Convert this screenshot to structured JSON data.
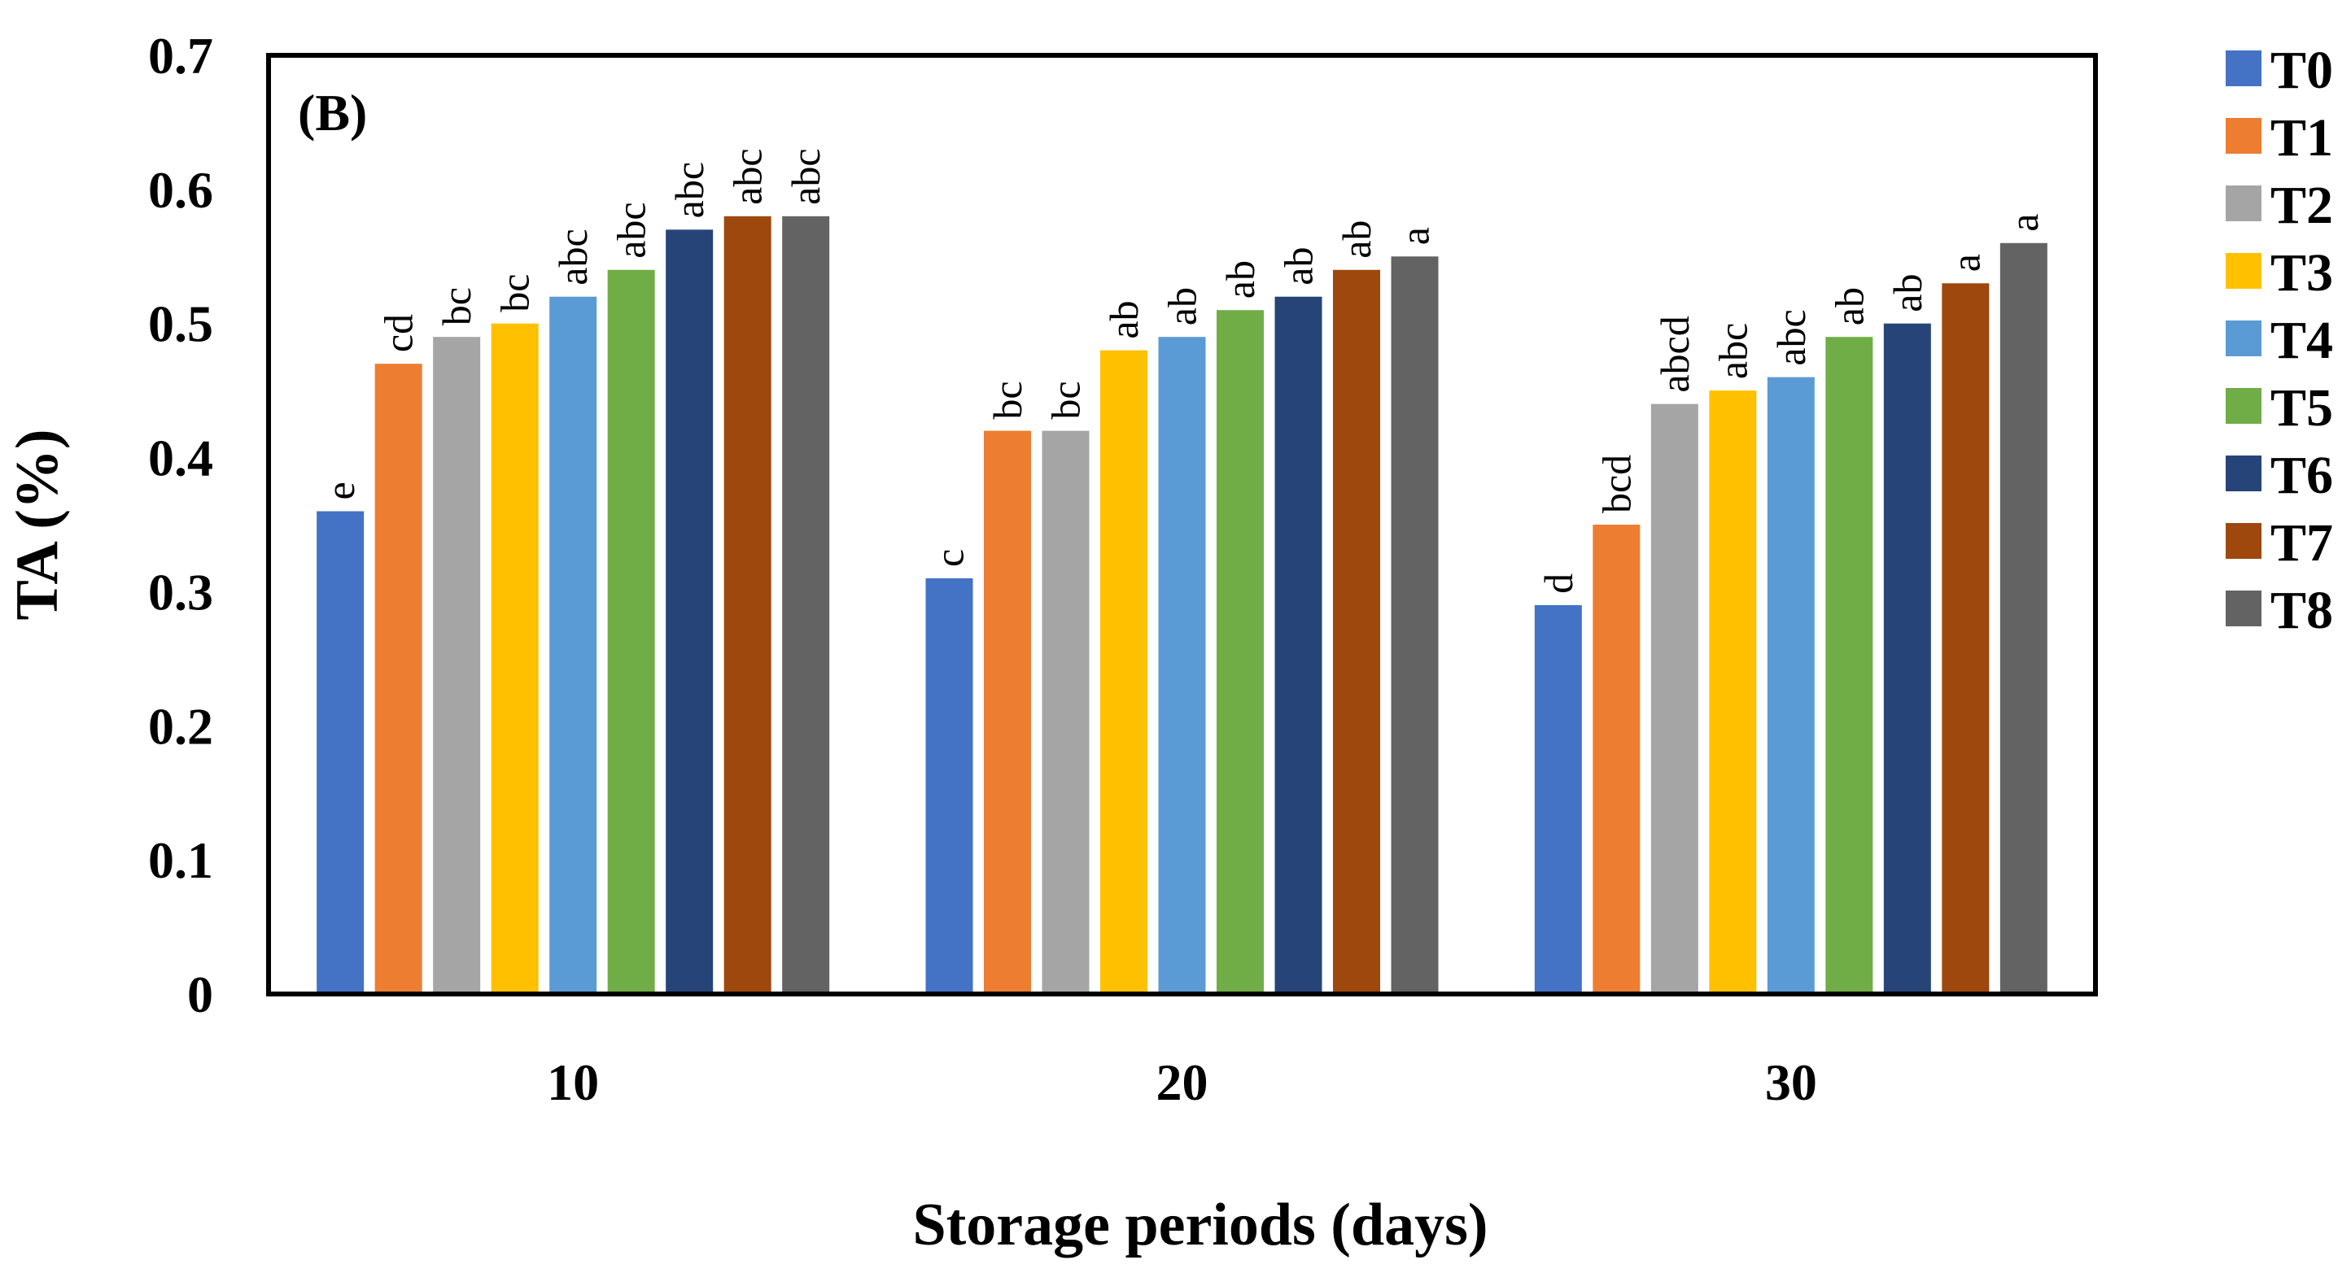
{
  "chart_data": {
    "type": "bar",
    "panel_label": "(B)",
    "xlabel": "Storage periods (days)",
    "ylabel": "TA (%)",
    "ylim": [
      0,
      0.7
    ],
    "yticks": [
      "0",
      "0.1",
      "0.2",
      "0.3",
      "0.4",
      "0.5",
      "0.6",
      "0.7"
    ],
    "categories": [
      "10",
      "20",
      "30"
    ],
    "legend_position": "right",
    "series": [
      {
        "name": "T0",
        "color": "#4472C4",
        "values": [
          0.36,
          0.31,
          0.29
        ],
        "labels": [
          "e",
          "c",
          "d"
        ]
      },
      {
        "name": "T1",
        "color": "#ED7D31",
        "values": [
          0.47,
          0.42,
          0.35
        ],
        "labels": [
          "cd",
          "bc",
          "bcd"
        ]
      },
      {
        "name": "T2",
        "color": "#A5A5A5",
        "values": [
          0.49,
          0.42,
          0.44
        ],
        "labels": [
          "bc",
          "bc",
          "abcd"
        ]
      },
      {
        "name": "T3",
        "color": "#FFC000",
        "values": [
          0.5,
          0.48,
          0.45
        ],
        "labels": [
          "bc",
          "ab",
          "abc"
        ]
      },
      {
        "name": "T4",
        "color": "#5B9BD5",
        "values": [
          0.52,
          0.49,
          0.46
        ],
        "labels": [
          "abc",
          "ab",
          "abc"
        ]
      },
      {
        "name": "T5",
        "color": "#70AD47",
        "values": [
          0.54,
          0.51,
          0.49
        ],
        "labels": [
          "abc",
          "ab",
          "ab"
        ]
      },
      {
        "name": "T6",
        "color": "#264478",
        "values": [
          0.57,
          0.52,
          0.5
        ],
        "labels": [
          "abc",
          "ab",
          "ab"
        ]
      },
      {
        "name": "T7",
        "color": "#9E480E",
        "values": [
          0.58,
          0.54,
          0.53
        ],
        "labels": [
          "abc",
          "ab",
          "a"
        ]
      },
      {
        "name": "T8",
        "color": "#636363",
        "values": [
          0.58,
          0.55,
          0.56
        ],
        "labels": [
          "abc",
          "a",
          "a"
        ]
      }
    ]
  }
}
